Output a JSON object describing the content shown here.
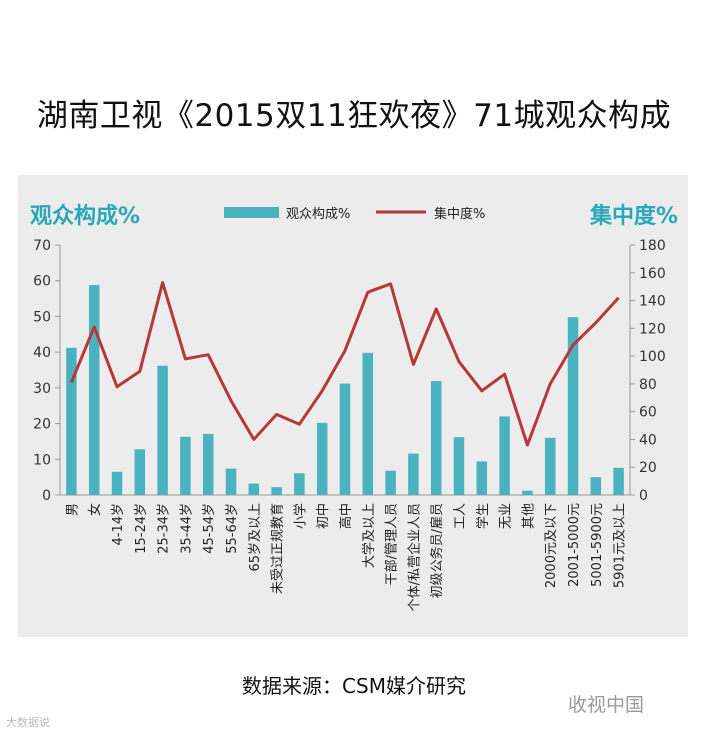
{
  "page": {
    "title": "湖南卫视《2015双11狂欢夜》71城观众构成",
    "source": "数据来源：CSM媒介研究",
    "watermark": "收视中国",
    "watermark2": "大数据说"
  },
  "colors": {
    "bar": "#4bb3bf",
    "line": "#b5383a",
    "accent_text": "#2aa7b9",
    "panel": "#ececec"
  },
  "chart_data": {
    "type": "bar",
    "left_axis_title": "观众构成%",
    "right_axis_title": "集中度%",
    "left_ylim": [
      0,
      70
    ],
    "right_ylim": [
      0,
      180
    ],
    "left_ticks": [
      "70",
      "60",
      "50",
      "40",
      "30",
      "20",
      "10",
      "0"
    ],
    "right_ticks": [
      "180",
      "160",
      "140",
      "120",
      "100",
      "80",
      "60",
      "40",
      "20",
      "0"
    ],
    "legend_position": "top",
    "categories": [
      "男",
      "女",
      "4-14岁",
      "15-24岁",
      "25-34岁",
      "35-44岁",
      "45-54岁",
      "55-64岁",
      "65岁及以上",
      "未受过正规教育",
      "小学",
      "初中",
      "高中",
      "大学及以上",
      "干部/管理人员",
      "个体/私营企业人员",
      "初级公务员/雇员",
      "工人",
      "学生",
      "无业",
      "其他",
      "2000元及以下",
      "2001-5000元",
      "5001-5900元",
      "5901元及以上"
    ],
    "series": [
      {
        "name": "观众构成%",
        "type": "bar",
        "axis": "left",
        "values": [
          41.2,
          58.8,
          6.5,
          12.8,
          36.2,
          16.3,
          17.1,
          7.4,
          3.2,
          2.2,
          6.1,
          20.2,
          31.2,
          39.8,
          6.8,
          11.6,
          31.9,
          16.2,
          9.4,
          22.0,
          1.2,
          16.0,
          49.8,
          5.0,
          7.6
        ]
      },
      {
        "name": "集中度%",
        "type": "line",
        "axis": "right",
        "values": [
          81,
          121,
          78,
          89,
          153,
          98,
          101,
          68,
          40,
          58,
          51,
          75,
          104,
          146,
          152,
          94,
          134,
          96,
          75,
          87,
          36,
          80,
          108,
          124,
          142
        ]
      }
    ]
  }
}
